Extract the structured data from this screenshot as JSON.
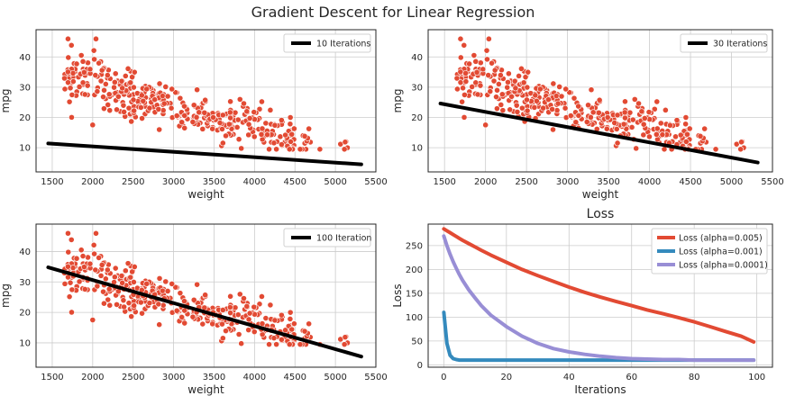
{
  "figure": {
    "suptitle": "Gradient Descent for Linear Regression"
  },
  "colors": {
    "scatter": "#e24a33",
    "fit_line": "#000000",
    "loss_0005": "#e24a33",
    "loss_0001": "#348abd",
    "loss_00001": "#988ed5",
    "grid": "#cccccc",
    "spine": "#262626"
  },
  "chart_data": [
    {
      "type": "scatter",
      "xlabel": "weight",
      "ylabel": "mpg",
      "xlim": [
        1300,
        5500
      ],
      "ylim": [
        2,
        49
      ],
      "xticks": [
        1500,
        2000,
        2500,
        3000,
        3500,
        4000,
        4500,
        5000,
        5500
      ],
      "yticks": [
        10,
        20,
        30,
        40
      ],
      "grid": true,
      "legend_position": "upper right",
      "fit_line": {
        "name": "10 Iterations",
        "x": [
          1450,
          5320
        ],
        "y": [
          11.4,
          4.5
        ]
      }
    },
    {
      "type": "scatter",
      "xlabel": "weight",
      "ylabel": "mpg",
      "xlim": [
        1300,
        5500
      ],
      "ylim": [
        2,
        49
      ],
      "xticks": [
        1500,
        2000,
        2500,
        3000,
        3500,
        4000,
        4500,
        5000,
        5500
      ],
      "yticks": [
        10,
        20,
        30,
        40
      ],
      "grid": true,
      "legend_position": "upper right",
      "fit_line": {
        "name": "30 Iterations",
        "x": [
          1450,
          5320
        ],
        "y": [
          24.6,
          5.1
        ]
      }
    },
    {
      "type": "scatter",
      "xlabel": "weight",
      "ylabel": "mpg",
      "xlim": [
        1300,
        5500
      ],
      "ylim": [
        2,
        49
      ],
      "xticks": [
        1500,
        2000,
        2500,
        3000,
        3500,
        4000,
        4500,
        5000,
        5500
      ],
      "yticks": [
        10,
        20,
        30,
        40
      ],
      "grid": true,
      "legend_position": "upper right",
      "fit_line": {
        "name": "100 Iteration",
        "x": [
          1450,
          5320
        ],
        "y": [
          34.8,
          5.5
        ]
      }
    },
    {
      "type": "line",
      "title": "Loss",
      "xlabel": "Iterations",
      "ylabel": "Loss",
      "xlim": [
        -5,
        105
      ],
      "ylim": [
        -5,
        295
      ],
      "xticks": [
        0,
        20,
        40,
        60,
        80,
        100
      ],
      "yticks": [
        0,
        50,
        100,
        150,
        200,
        250
      ],
      "grid": true,
      "legend_position": "upper right",
      "x": [
        0,
        1,
        2,
        3,
        4,
        5,
        6,
        8,
        10,
        12,
        15,
        20,
        25,
        30,
        35,
        40,
        45,
        50,
        55,
        60,
        65,
        70,
        75,
        80,
        85,
        90,
        95,
        99
      ],
      "series": [
        {
          "name": "Loss (alpha=0.005)",
          "values": [
            285,
            281,
            277,
            273,
            269,
            265,
            261,
            254,
            247,
            240,
            230,
            215,
            200,
            187,
            175,
            163,
            152,
            142,
            133,
            124,
            115,
            107,
            99,
            90,
            80,
            70,
            60,
            48
          ]
        },
        {
          "name": "Loss (alpha=0.001)",
          "values": [
            110,
            45,
            20,
            13,
            11,
            10,
            10,
            10,
            10,
            10,
            10,
            10,
            10,
            10,
            10,
            10,
            10,
            10,
            10,
            10,
            10,
            10,
            10,
            10,
            10,
            10,
            10,
            10
          ]
        },
        {
          "name": "Loss (alpha=0.0001)",
          "values": [
            270,
            250,
            232,
            216,
            202,
            189,
            177,
            157,
            140,
            124,
            104,
            80,
            60,
            45,
            34,
            27,
            22,
            18,
            15,
            13,
            12,
            11,
            11,
            10,
            10,
            10,
            10,
            10
          ]
        }
      ]
    }
  ]
}
